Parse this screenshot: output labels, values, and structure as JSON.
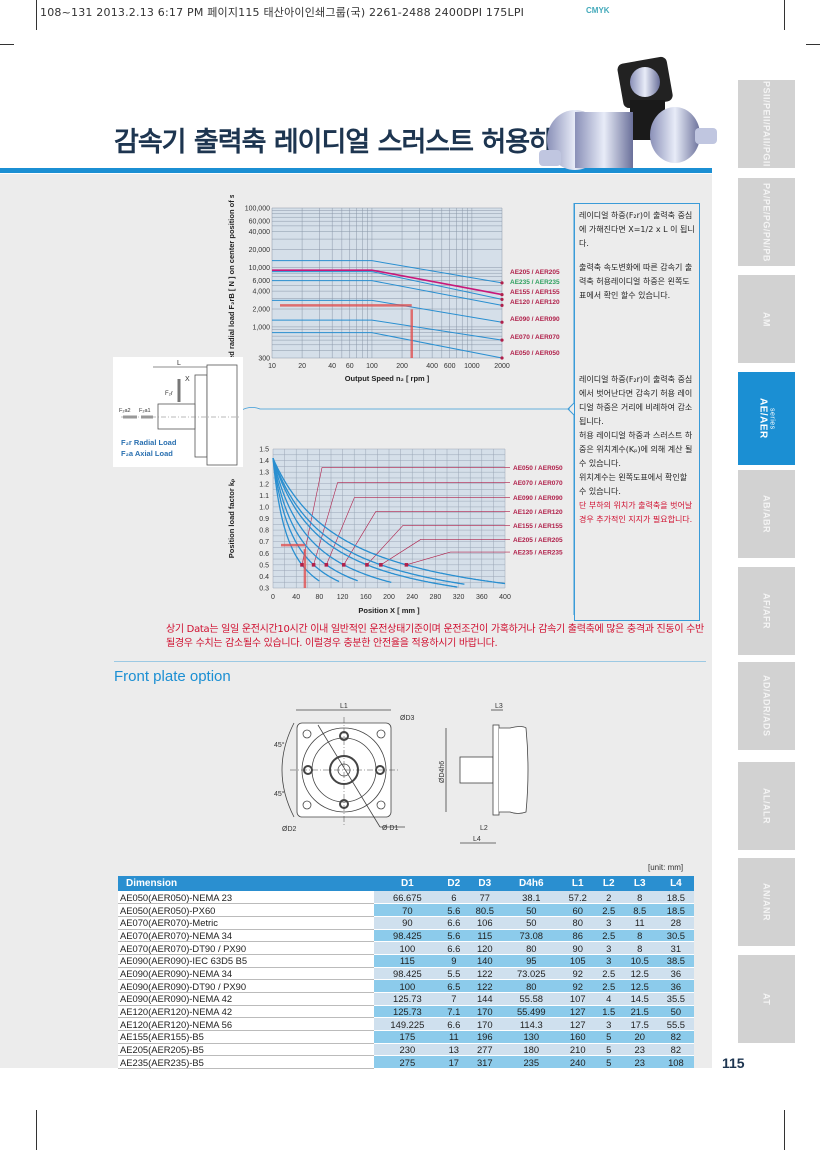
{
  "print_line": "108~131  2013.2.13 6:17 PM  페이지115  태산아이인쇄그룹(국) 2261-2488  2400DPI 175LPI",
  "cmyk": "CMYK",
  "title": "감속기 출력축 레이디얼 스러스트 허용하중",
  "side_tabs": [
    {
      "label": "PSII/PEII/PAII/PGII"
    },
    {
      "label": "PA/PE/PG/PN/PB"
    },
    {
      "label": "AM"
    },
    {
      "label": "AE/AER",
      "sub": "series",
      "active": true
    },
    {
      "label": "AB/ABR"
    },
    {
      "label": "AF/AFR"
    },
    {
      "label": "AD/ADR/ADS"
    },
    {
      "label": "AL/ALR"
    },
    {
      "label": "AN/ANR"
    },
    {
      "label": "AT"
    }
  ],
  "page_number": "115",
  "notes": {
    "p1": "레이디얼 하중(F₂r)이 출력축 중심에 가해진다면 X=1/2 x L 이 됩니다.",
    "p2": "출력축 속도변화에 따른 감속기 출력축 허용레이디얼 하중은 왼쪽도표에서 확인 할수 있습니다.",
    "p3": "레이디얼 하중(F₂r)이 출력축 중심에서 벗어난다면 감속기 허용 레이디얼 하중은 거리에 비례하여 감소됩니다.",
    "p4": "허용 레이디얼 하중과 스러스트 하중은 위치계수(Kₚ)에 의해 계산 될수 있습니다.",
    "p5": "위치계수는 왼쪽도표에서 확인할 수 있습니다.",
    "p6": "단 부하의 위치가 출력축을 벗어날 경우 추가적인 지지가 필요합니다."
  },
  "shaft": {
    "L": "L",
    "X": "X",
    "F2r": "F₂r",
    "F2a2": "F₂a2",
    "F2a1": "F₂a1",
    "radial": "F₂r Radial Load",
    "axial": "F₂a Axial Load"
  },
  "warning": "상기 Data는 일일 운전시간10시간 이내 일반적인 운전상태기준이며 운전조건이 가혹하거나 감속기 출력축에 많은 충격과 진동이 수반될경우 수치는 감소될수 있습니다. 이럴경우 충분한 안전율을 적용하시기 바랍니다.",
  "front_plate_title": "Front plate option",
  "drawing_labels": {
    "L1": "L1",
    "D3": "ØD3",
    "D2": "ØD2",
    "D1": "Ø D1",
    "a1": "45°",
    "a2": "45°",
    "L3": "L3",
    "D4": "ØD4h6",
    "L2": "L2",
    "L4": "L4"
  },
  "chart_data": [
    {
      "type": "line",
      "ylabel": "Permitted radial load F₂rB [ N ] on center position of shaft",
      "xlabel": "Output Speed n₂ [ rpm ]",
      "x_scale": "log",
      "y_scale": "log",
      "xlim": [
        10,
        2000
      ],
      "ylim": [
        300,
        100000
      ],
      "grid": true,
      "xticks": [
        "10",
        "20",
        "40",
        "60",
        "100",
        "200",
        "400",
        "600",
        "1000",
        "2000"
      ],
      "yticks": [
        "300",
        "1,000",
        "2,000",
        "4,000",
        "6,000",
        "10,000",
        "20,000",
        "40,000",
        "60,000",
        "100,000"
      ],
      "series": [
        {
          "name": "AE205 / AER205",
          "x": [
            10,
            100,
            2000
          ],
          "values": [
            13000,
            13000,
            5500
          ],
          "color": "#2a8fd0"
        },
        {
          "name": "AE235 / AER235",
          "x": [
            10,
            100,
            2000
          ],
          "values": [
            9000,
            9000,
            3500
          ],
          "color": "#c8187a",
          "label_color": "#2ea060"
        },
        {
          "name": "AE155 / AER155",
          "x": [
            10,
            100,
            2000
          ],
          "values": [
            8500,
            8500,
            2900
          ],
          "color": "#2a8fd0"
        },
        {
          "name": "AE120 / AER120",
          "x": [
            10,
            100,
            2000
          ],
          "values": [
            6000,
            6000,
            2300
          ],
          "color": "#2a8fd0"
        },
        {
          "name": "AE090 / AER090",
          "x": [
            10,
            100,
            2000
          ],
          "values": [
            2800,
            2800,
            1200
          ],
          "color": "#2a8fd0"
        },
        {
          "name": "AE070 / AER070",
          "x": [
            10,
            100,
            2000
          ],
          "values": [
            1300,
            1300,
            600
          ],
          "color": "#2a8fd0"
        },
        {
          "name": "AE050 / AER050",
          "x": [
            10,
            100,
            2000
          ],
          "values": [
            800,
            800,
            300
          ],
          "color": "#2a8fd0"
        }
      ],
      "example": {
        "x": 250,
        "y": 2300
      }
    },
    {
      "type": "line",
      "ylabel": "Position load factor kₚ",
      "xlabel": "Position X [ mm ]",
      "xlim": [
        0,
        400
      ],
      "ylim": [
        0.3,
        1.5
      ],
      "grid": true,
      "xticks": [
        "0",
        "40",
        "80",
        "120",
        "160",
        "200",
        "240",
        "280",
        "320",
        "360",
        "400"
      ],
      "yticks": [
        "0.3",
        "0.4",
        "0.5",
        "0.6",
        "0.7",
        "0.8",
        "0.9",
        "1.0",
        "1.1",
        "1.2",
        "1.3",
        "1.4",
        "1.5"
      ],
      "kp_at_zero": 1.42,
      "series": [
        {
          "name": "AE050 / AER050",
          "x_at_kp_0_5": 50,
          "x_end": 80
        },
        {
          "name": "AE070 / AER070",
          "x_at_kp_0_5": 70,
          "x_end": 115
        },
        {
          "name": "AE090 / AER090",
          "x_at_kp_0_5": 92,
          "x_end": 146
        },
        {
          "name": "AE120 / AER120",
          "x_at_kp_0_5": 122,
          "x_end": 205
        },
        {
          "name": "AE155 / AER155",
          "x_at_kp_0_5": 162,
          "x_end": 318
        },
        {
          "name": "AE205 / AER205",
          "x_at_kp_0_5": 186,
          "x_end": 330
        },
        {
          "name": "AE235 / AER235",
          "x_at_kp_0_5": 230,
          "x_end": 400
        }
      ],
      "example": {
        "x": 55,
        "y": 0.67
      }
    }
  ],
  "table": {
    "unit": "[unit: mm]",
    "headers": [
      "Dimension",
      "D1",
      "D2",
      "D3",
      "D4h6",
      "L1",
      "L2",
      "L3",
      "L4"
    ],
    "rows": [
      [
        "AE050(AER050)-NEMA 23",
        "66.675",
        "6",
        "77",
        "38.1",
        "57.2",
        "2",
        "8",
        "18.5"
      ],
      [
        "AE050(AER050)-PX60",
        "70",
        "5.6",
        "80.5",
        "50",
        "60",
        "2.5",
        "8.5",
        "18.5"
      ],
      [
        "AE070(AER070)-Metric",
        "90",
        "6.6",
        "106",
        "50",
        "80",
        "3",
        "11",
        "28"
      ],
      [
        "AE070(AER070)-NEMA 34",
        "98.425",
        "5.6",
        "115",
        "73.08",
        "86",
        "2.5",
        "8",
        "30.5"
      ],
      [
        "AE070(AER070)-DT90 / PX90",
        "100",
        "6.6",
        "120",
        "80",
        "90",
        "3",
        "8",
        "31"
      ],
      [
        "AE090(AER090)-IEC 63D5 B5",
        "115",
        "9",
        "140",
        "95",
        "105",
        "3",
        "10.5",
        "38.5"
      ],
      [
        "AE090(AER090)-NEMA 34",
        "98.425",
        "5.5",
        "122",
        "73.025",
        "92",
        "2.5",
        "12.5",
        "36"
      ],
      [
        "AE090(AER090)-DT90 / PX90",
        "100",
        "6.5",
        "122",
        "80",
        "92",
        "2.5",
        "12.5",
        "36"
      ],
      [
        "AE090(AER090)-NEMA 42",
        "125.73",
        "7",
        "144",
        "55.58",
        "107",
        "4",
        "14.5",
        "35.5"
      ],
      [
        "AE120(AER120)-NEMA 42",
        "125.73",
        "7.1",
        "170",
        "55.499",
        "127",
        "1.5",
        "21.5",
        "50"
      ],
      [
        "AE120(AER120)-NEMA 56",
        "149.225",
        "6.6",
        "170",
        "114.3",
        "127",
        "3",
        "17.5",
        "55.5"
      ],
      [
        "AE155(AER155)-B5",
        "175",
        "11",
        "196",
        "130",
        "160",
        "5",
        "20",
        "82"
      ],
      [
        "AE205(AER205)-B5",
        "230",
        "13",
        "277",
        "180",
        "210",
        "5",
        "23",
        "82"
      ],
      [
        "AE235(AER235)-B5",
        "275",
        "17",
        "317",
        "235",
        "240",
        "5",
        "23",
        "108"
      ]
    ]
  }
}
